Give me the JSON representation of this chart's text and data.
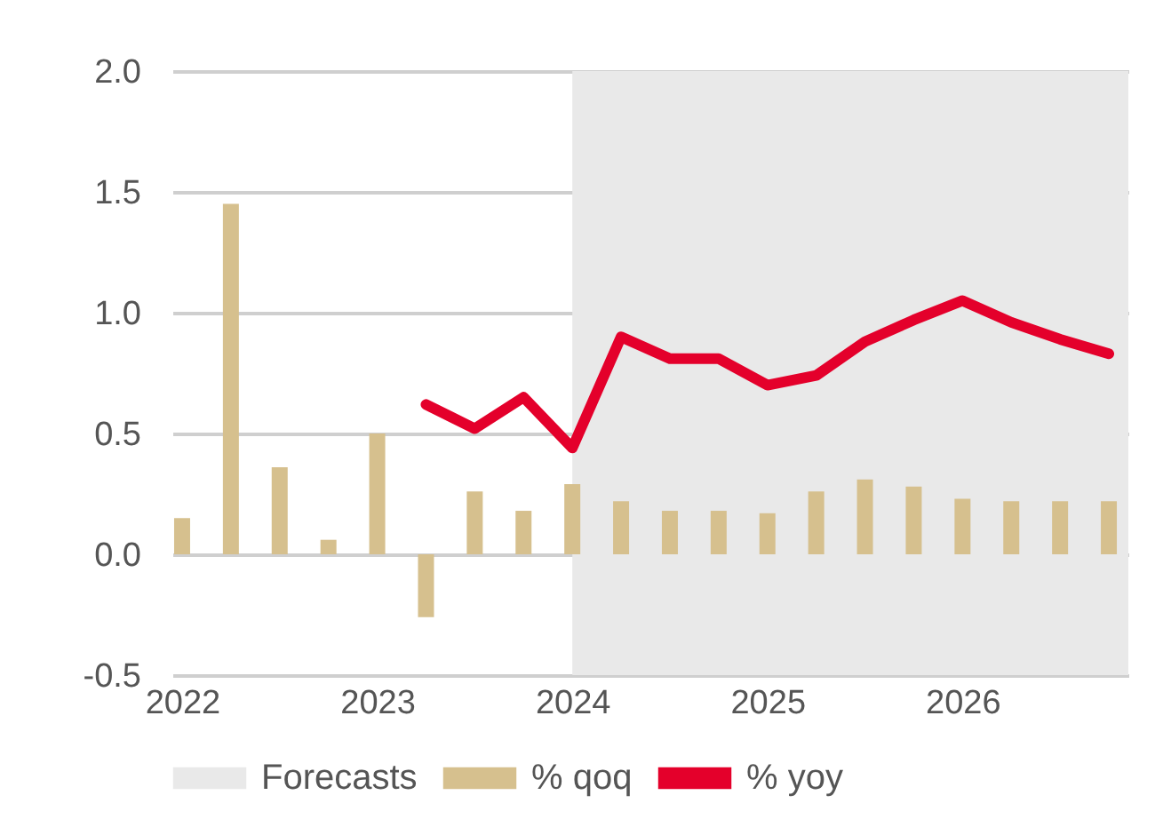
{
  "chart_data": {
    "type": "bar",
    "x": [
      2022,
      2022.25,
      2022.5,
      2022.75,
      2023,
      2023.25,
      2023.5,
      2023.75,
      2024,
      2024.25,
      2024.5,
      2024.75,
      2025,
      2025.25,
      2025.5,
      2025.75,
      2026,
      2026.25,
      2026.5,
      2026.75
    ],
    "series": [
      {
        "name": "% qoq",
        "color": "#d6c08e",
        "values": [
          0.15,
          1.45,
          0.36,
          0.06,
          0.5,
          -0.26,
          0.26,
          0.18,
          0.29,
          0.22,
          0.18,
          0.18,
          0.17,
          0.26,
          0.31,
          0.28,
          0.23,
          0.22,
          0.22,
          0.22
        ]
      },
      {
        "name": "% yoy",
        "type": "line",
        "color": "#e4002b",
        "values": [
          null,
          null,
          null,
          null,
          null,
          0.62,
          0.52,
          0.65,
          0.44,
          0.9,
          0.81,
          0.81,
          0.7,
          0.74,
          0.88,
          0.97,
          1.05,
          0.96,
          0.89,
          0.83
        ]
      }
    ],
    "bands": [
      {
        "axis": "x",
        "from": 2024,
        "to": 2026.85,
        "label": "Forecasts",
        "color": "#e9e9e9"
      }
    ],
    "xlim": [
      2021.95,
      2026.85
    ],
    "xticks": [
      2022,
      2023,
      2024,
      2025,
      2026
    ],
    "ylim": [
      -0.5,
      2.0
    ],
    "yticks": [
      {
        "value": -0.5,
        "label": "-0.5"
      },
      {
        "value": 0,
        "label": "0.0"
      },
      {
        "value": 0.5,
        "label": "0.5"
      },
      {
        "value": 1,
        "label": "1.0"
      },
      {
        "value": 1.5,
        "label": "1.5"
      },
      {
        "value": 2,
        "label": "2.0"
      }
    ],
    "grid": "y",
    "legend": "bottom",
    "line_style": "solid",
    "marker": "none"
  }
}
